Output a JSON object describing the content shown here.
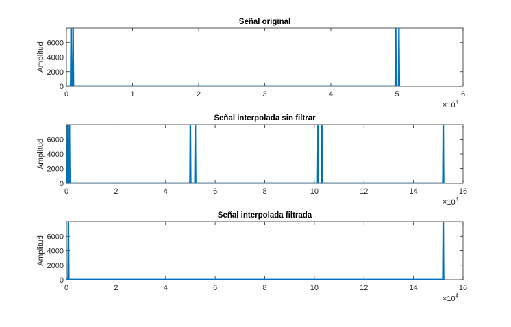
{
  "colors": {
    "line": "#0072BD",
    "axis": "#262626",
    "tick_text": "#262626",
    "background": "#ffffff"
  },
  "chart_data": [
    {
      "type": "line",
      "title": "Señal original",
      "ylabel": "Amplitud",
      "xlabel": "",
      "x_exponent_label": "×10",
      "x_exponent": "4",
      "xlim": [
        0,
        6
      ],
      "ylim": [
        0,
        8000
      ],
      "xticks": [
        0,
        1,
        2,
        3,
        4,
        5,
        6
      ],
      "yticks": [
        0,
        2000,
        4000,
        6000
      ],
      "grid": false,
      "series": [
        {
          "spikes": [
            0.07,
            0.1,
            4.98,
            5.03
          ],
          "baseline": 50
        }
      ]
    },
    {
      "type": "line",
      "title": "Señal interpolada sin filtrar",
      "ylabel": "Amplitud",
      "xlabel": "",
      "x_exponent_label": "×10",
      "x_exponent": "4",
      "xlim": [
        0,
        16
      ],
      "ylim": [
        0,
        8000
      ],
      "xticks": [
        0,
        2,
        4,
        6,
        8,
        10,
        12,
        14,
        16
      ],
      "yticks": [
        0,
        2000,
        4000,
        6000
      ],
      "grid": false,
      "series": [
        {
          "spikes": [
            0.05,
            0.12,
            5.0,
            5.2,
            10.15,
            10.3,
            15.2
          ],
          "baseline": 50
        }
      ]
    },
    {
      "type": "line",
      "title": "Señal interpolada filtrada",
      "ylabel": "Amplitud",
      "xlabel": "",
      "x_exponent_label": "×10",
      "x_exponent": "4",
      "xlim": [
        0,
        16
      ],
      "ylim": [
        0,
        8000
      ],
      "xticks": [
        0,
        2,
        4,
        6,
        8,
        10,
        12,
        14,
        16
      ],
      "yticks": [
        0,
        2000,
        4000,
        6000
      ],
      "grid": false,
      "series": [
        {
          "spikes": [
            0.08,
            15.2
          ],
          "baseline": 50
        }
      ]
    }
  ]
}
